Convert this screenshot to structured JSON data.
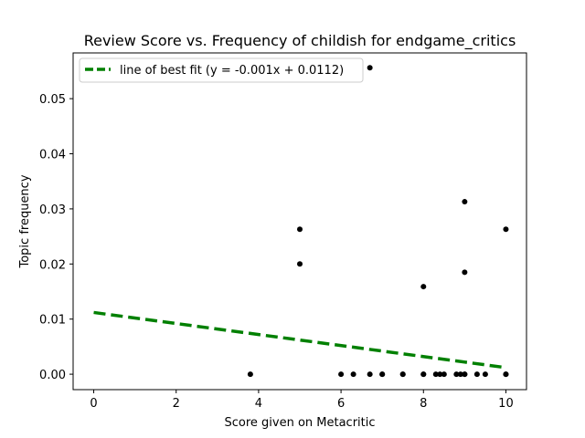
{
  "chart_data": {
    "type": "scatter",
    "title": "Review Score vs. Frequency of childish for endgame_critics",
    "xlabel": "Score given on Metacritic",
    "ylabel": "Topic frequency",
    "xlim": [
      -0.5,
      10.5
    ],
    "ylim": [
      -0.0028,
      0.0583
    ],
    "xticks": [
      0,
      2,
      4,
      6,
      8,
      10
    ],
    "xtick_labels": [
      "0",
      "2",
      "4",
      "6",
      "8",
      "10"
    ],
    "yticks": [
      0.0,
      0.01,
      0.02,
      0.03,
      0.04,
      0.05
    ],
    "ytick_labels": [
      "0.00",
      "0.01",
      "0.02",
      "0.03",
      "0.04",
      "0.05"
    ],
    "grid": false,
    "legend_position": "top-left",
    "points": {
      "color": "#000000",
      "x": [
        3.8,
        6.0,
        6.3,
        6.7,
        7.0,
        7.0,
        7.5,
        7.5,
        8.0,
        8.0,
        8.3,
        8.4,
        8.5,
        8.8,
        8.9,
        9.0,
        9.0,
        9.3,
        9.5,
        10.0,
        10.0,
        6.7,
        5.0,
        5.0,
        8.0,
        9.0,
        9.0,
        10.0
      ],
      "y": [
        0.0,
        0.0,
        0.0,
        0.0,
        0.0,
        0.0,
        0.0,
        0.0,
        0.0,
        0.0,
        0.0,
        0.0,
        0.0,
        0.0,
        0.0,
        0.0,
        0.0,
        0.0,
        0.0,
        0.0,
        0.0,
        0.0556,
        0.0263,
        0.02,
        0.0159,
        0.0313,
        0.0185,
        0.0263
      ]
    },
    "fit_line": {
      "label": "line of best fit (y = -0.001x + 0.0112)",
      "slope": -0.001,
      "intercept": 0.0112,
      "x_range": [
        0,
        10
      ],
      "color": "#008000",
      "style": "dashed"
    }
  }
}
